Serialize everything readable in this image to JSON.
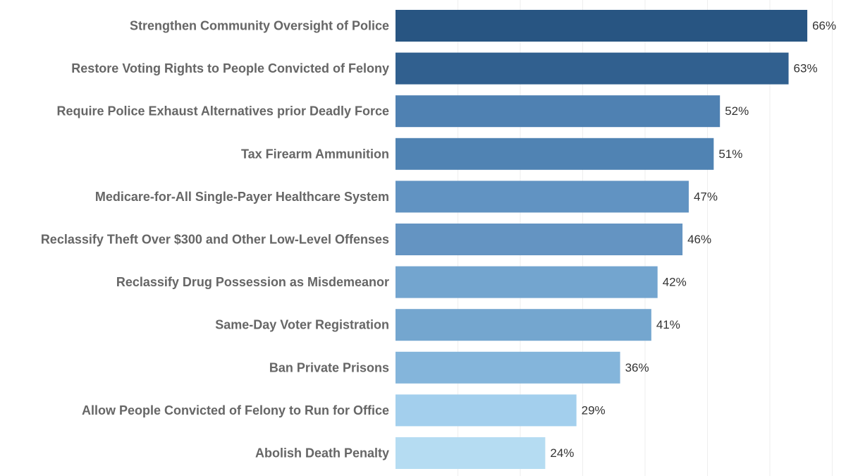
{
  "chart_data": {
    "type": "bar",
    "orientation": "horizontal",
    "categories": [
      "Strengthen Community Oversight of Police",
      "Restore Voting Rights to People Convicted of Felony",
      "Require Police Exhaust Alternatives prior Deadly Force",
      "Tax Firearm Ammunition",
      "Medicare-for-All Single-Payer Healthcare System",
      "Reclassify Theft Over $300 and Other Low-Level Offenses",
      "Reclassify Drug Possession as Misdemeanor",
      "Same-Day Voter Registration",
      "Ban Private Prisons",
      "Allow People Convicted of Felony to Run for Office",
      "Abolish Death Penalty"
    ],
    "values": [
      66,
      63,
      52,
      51,
      47,
      46,
      42,
      41,
      36,
      29,
      24
    ],
    "value_labels": [
      "66%",
      "63%",
      "52%",
      "51%",
      "47%",
      "46%",
      "42%",
      "41%",
      "36%",
      "29%",
      "24%"
    ],
    "colors": [
      "#285582",
      "#31608f",
      "#4f81b2",
      "#5083b3",
      "#6193c2",
      "#6494c2",
      "#73a5cf",
      "#74a6cf",
      "#84b5db",
      "#a3cfed",
      "#b5dcf2"
    ],
    "gridline_color": "#eeeeee",
    "grid": true,
    "xlim": [
      0,
      72
    ],
    "grid_step": 10,
    "title": "",
    "xlabel": "",
    "ylabel": ""
  }
}
